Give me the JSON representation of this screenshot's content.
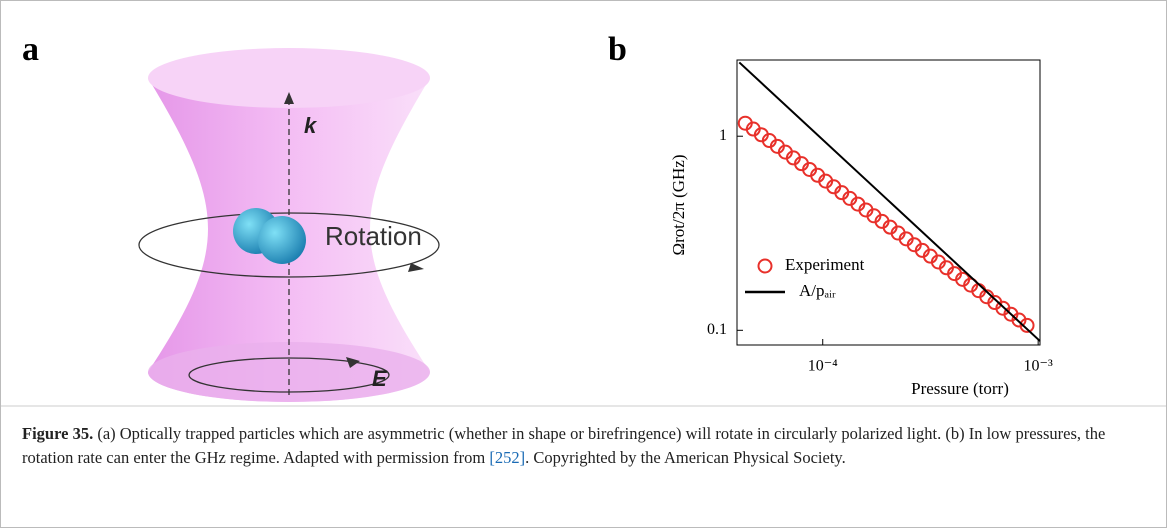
{
  "panel_a": {
    "label": "a",
    "arrow_label": "k",
    "rotation_label": "Rotation",
    "field_label": "E"
  },
  "panel_b": {
    "label": "b"
  },
  "chart_data": {
    "type": "scatter",
    "log_x": true,
    "log_y": true,
    "xlabel": "Pressure (torr)",
    "ylabel": "Ωrot/2π (GHz)",
    "xlim": [
      4e-05,
      0.00102
    ],
    "ylim": [
      0.084,
      2.47
    ],
    "xticks": [
      {
        "value": 0.0001,
        "label": "10⁻⁴"
      },
      {
        "value": 0.001,
        "label": "10⁻³"
      }
    ],
    "yticks": [
      0.1,
      1
    ],
    "series": [
      {
        "name": "Experiment",
        "color": "#e8302a",
        "marker": "circle",
        "x": [
          4.37e-05,
          4.76e-05,
          5.19e-05,
          5.65e-05,
          6.16e-05,
          6.71e-05,
          7.31e-05,
          7.97e-05,
          8.69e-05,
          9.47e-05,
          0.0001032,
          0.0001125,
          0.0001226,
          0.0001336,
          0.0001456,
          0.0001587,
          0.0001729,
          0.0001885,
          0.0002055,
          0.0002239,
          0.0002441,
          0.0002661,
          0.00029,
          0.000316,
          0.0003444,
          0.0003754,
          0.0004092,
          0.000446,
          0.000486,
          0.0005297,
          0.0005773,
          0.0006293,
          0.0006859,
          0.0007475,
          0.0008147,
          0.000888
        ],
        "values": [
          1.167,
          1.089,
          1.017,
          0.95,
          0.887,
          0.828,
          0.773,
          0.722,
          0.674,
          0.629,
          0.587,
          0.549,
          0.512,
          0.478,
          0.447,
          0.417,
          0.389,
          0.364,
          0.34,
          0.317,
          0.296,
          0.276,
          0.258,
          0.241,
          0.225,
          0.21,
          0.196,
          0.183,
          0.171,
          0.16,
          0.149,
          0.139,
          0.13,
          0.121,
          0.113,
          0.106
        ]
      },
      {
        "name": "A/pₐᵢᵣ",
        "color": "#000000",
        "marker": "line",
        "x": [
          4.1e-05,
          0.00102
        ],
        "values": [
          2.4,
          0.088
        ]
      }
    ],
    "legend": "lower-left"
  },
  "caption": {
    "label": "Figure 35.",
    "text_before": " (a) Optically trapped particles which are asymmetric (whether in shape or birefringence) will rotate in circularly polarized light. (b) In low pressures, the rotation rate can enter the GHz regime. Adapted with permission from ",
    "reference": "[252]",
    "text_after": ". Copyrighted by the American Physical Society."
  }
}
